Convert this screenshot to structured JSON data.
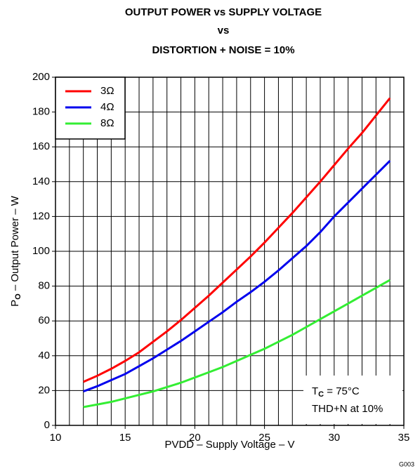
{
  "chart_data": {
    "type": "line",
    "title": [
      "OUTPUT POWER vs SUPPLY VOLTAGE",
      "vs",
      "DISTORTION + NOISE = 10%"
    ],
    "x_label": "PVDD – Supply Voltage – V",
    "y_label": {
      "main": "P",
      "sub": "O",
      "rest": " – Output Power – W"
    },
    "x": [
      12,
      13,
      14,
      15,
      16,
      17,
      18,
      19,
      20,
      21,
      22,
      23,
      24,
      25,
      26,
      27,
      28,
      29,
      30,
      31,
      32,
      33,
      34
    ],
    "series": [
      {
        "name": "3Ω",
        "color": "#ff0000",
        "values": [
          25,
          28.5,
          32.5,
          37,
          42,
          48,
          54,
          60.5,
          67.5,
          74.5,
          82,
          89.5,
          97,
          105,
          113.5,
          122,
          131,
          140,
          149.5,
          159,
          168,
          178,
          188
        ]
      },
      {
        "name": "4Ω",
        "color": "#0000ee",
        "values": [
          19.5,
          22.5,
          26,
          29.5,
          34,
          38.5,
          43.5,
          48.5,
          54,
          59.5,
          65,
          71,
          76.5,
          82.5,
          89,
          96,
          103,
          111,
          120,
          128,
          136,
          144,
          152
        ]
      },
      {
        "name": "8Ω",
        "color": "#33ee33",
        "values": [
          10.5,
          12,
          13.5,
          15.5,
          17.5,
          19.5,
          22,
          24.5,
          27.5,
          30.5,
          33.5,
          37,
          40.5,
          44,
          48,
          52,
          56.5,
          61,
          65.5,
          70,
          74.5,
          79,
          83.5
        ]
      }
    ],
    "xlim": [
      10,
      35
    ],
    "xticks": [
      10,
      15,
      20,
      25,
      30,
      35
    ],
    "ylim": [
      0,
      200
    ],
    "yticks": [
      0,
      20,
      40,
      60,
      80,
      100,
      120,
      140,
      160,
      180,
      200
    ],
    "grid": {
      "x_step": 1
    },
    "legend": "upper left",
    "annotation": {
      "main": "T",
      "sub": "C",
      "rest": " = 75°C",
      "line2": "THD+N at 10%"
    },
    "figure_id": "G003"
  }
}
